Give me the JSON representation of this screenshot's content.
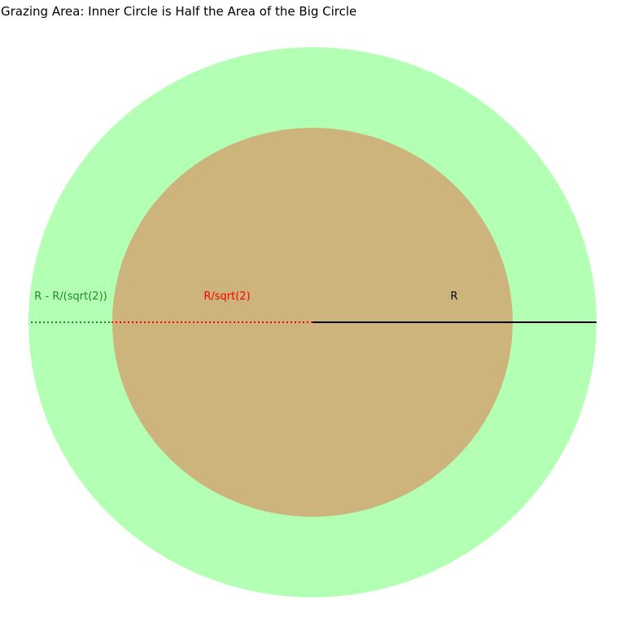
{
  "title": "Grazing Area: Inner Circle is Half the Area of the Big Circle",
  "colors": {
    "big_circle": "#b3ffb3",
    "inner_circle": "#ccb47c",
    "outer_segment": "#228b22",
    "inner_radius": "#ff0000",
    "big_radius": "#000000"
  },
  "labels": {
    "outer_segment": "R - R/(sqrt(2))",
    "inner_radius": "R/sqrt(2)",
    "big_radius": "R"
  }
}
